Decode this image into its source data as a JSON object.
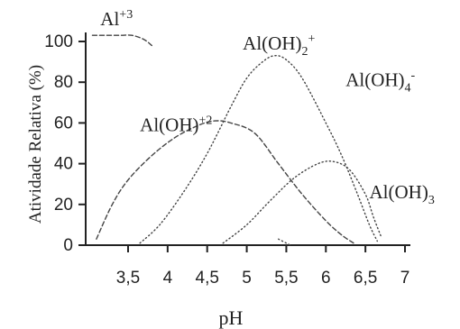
{
  "chart_data": {
    "type": "line",
    "title": "",
    "xlabel": "pH",
    "ylabel": "Atividade Relativa (%)",
    "xlim": [
      3.0,
      7.0
    ],
    "ylim": [
      0,
      110
    ],
    "x_ticks": [
      {
        "value": 3.5,
        "label": "3,5"
      },
      {
        "value": 4.0,
        "label": "4"
      },
      {
        "value": 4.5,
        "label": "4,5"
      },
      {
        "value": 5.0,
        "label": "5"
      },
      {
        "value": 5.5,
        "label": "5,5"
      },
      {
        "value": 6.0,
        "label": "6"
      },
      {
        "value": 6.5,
        "label": "6,5"
      },
      {
        "value": 7.0,
        "label": "7"
      }
    ],
    "y_ticks": [
      {
        "value": 0,
        "label": "0"
      },
      {
        "value": 20,
        "label": "20"
      },
      {
        "value": 40,
        "label": "40"
      },
      {
        "value": 60,
        "label": "60"
      },
      {
        "value": 80,
        "label": "80"
      },
      {
        "value": 100,
        "label": "100"
      }
    ],
    "grid": false,
    "legend": "none",
    "series": [
      {
        "name": "Al+3",
        "style": "dashed",
        "points": [
          [
            3.05,
            103
          ],
          [
            3.2,
            103
          ],
          [
            3.4,
            103
          ],
          [
            3.55,
            103
          ],
          [
            3.7,
            101
          ],
          [
            3.8,
            98
          ]
        ]
      },
      {
        "name": "Al(OH)+2",
        "style": "dashed",
        "points": [
          [
            3.1,
            3
          ],
          [
            3.3,
            20
          ],
          [
            3.5,
            32
          ],
          [
            3.8,
            44
          ],
          [
            4.1,
            53
          ],
          [
            4.4,
            59
          ],
          [
            4.6,
            61
          ],
          [
            4.8,
            60
          ],
          [
            5.1,
            55
          ],
          [
            5.4,
            40
          ],
          [
            5.7,
            25
          ],
          [
            6.0,
            12
          ],
          [
            6.2,
            5
          ],
          [
            6.35,
            1
          ]
        ]
      },
      {
        "name": "Al(OH)2+",
        "style": "dotted",
        "points": [
          [
            3.65,
            1
          ],
          [
            3.9,
            10
          ],
          [
            4.2,
            26
          ],
          [
            4.5,
            45
          ],
          [
            4.8,
            68
          ],
          [
            5.0,
            82
          ],
          [
            5.2,
            90
          ],
          [
            5.35,
            93
          ],
          [
            5.5,
            91
          ],
          [
            5.7,
            82
          ],
          [
            6.0,
            60
          ],
          [
            6.2,
            44
          ],
          [
            6.4,
            25
          ],
          [
            6.55,
            10
          ],
          [
            6.65,
            2
          ]
        ]
      },
      {
        "name": "Al(OH)4-",
        "style": "dotted",
        "points": [
          [
            5.4,
            3
          ],
          [
            5.5,
            1
          ],
          [
            5.55,
            0
          ]
        ]
      },
      {
        "name": "Al(OH)3",
        "style": "dotted",
        "points": [
          [
            4.7,
            1
          ],
          [
            5.0,
            10
          ],
          [
            5.3,
            22
          ],
          [
            5.6,
            33
          ],
          [
            5.9,
            40
          ],
          [
            6.1,
            41
          ],
          [
            6.3,
            37
          ],
          [
            6.5,
            25
          ],
          [
            6.6,
            14
          ],
          [
            6.7,
            4
          ]
        ]
      }
    ],
    "series_labels": [
      {
        "series": "Al+3",
        "base": "Al",
        "sup": "+3",
        "sub": "",
        "x": 3.15,
        "y": 108
      },
      {
        "series": "Al(OH)+2",
        "base": "Al(OH)",
        "sup": "+2",
        "sub": "",
        "x": 3.65,
        "y": 56
      },
      {
        "series": "Al(OH)2+",
        "base": "Al(OH)",
        "sup": "+",
        "sub": "2",
        "x": 4.95,
        "y": 96
      },
      {
        "series": "Al(OH)4-",
        "base": "Al(OH)",
        "sup": "-",
        "sub": "4",
        "x": 6.25,
        "y": 78
      },
      {
        "series": "Al(OH)3",
        "base": "Al(OH)",
        "sup": "",
        "sub": "3",
        "x": 6.55,
        "y": 23
      }
    ]
  }
}
